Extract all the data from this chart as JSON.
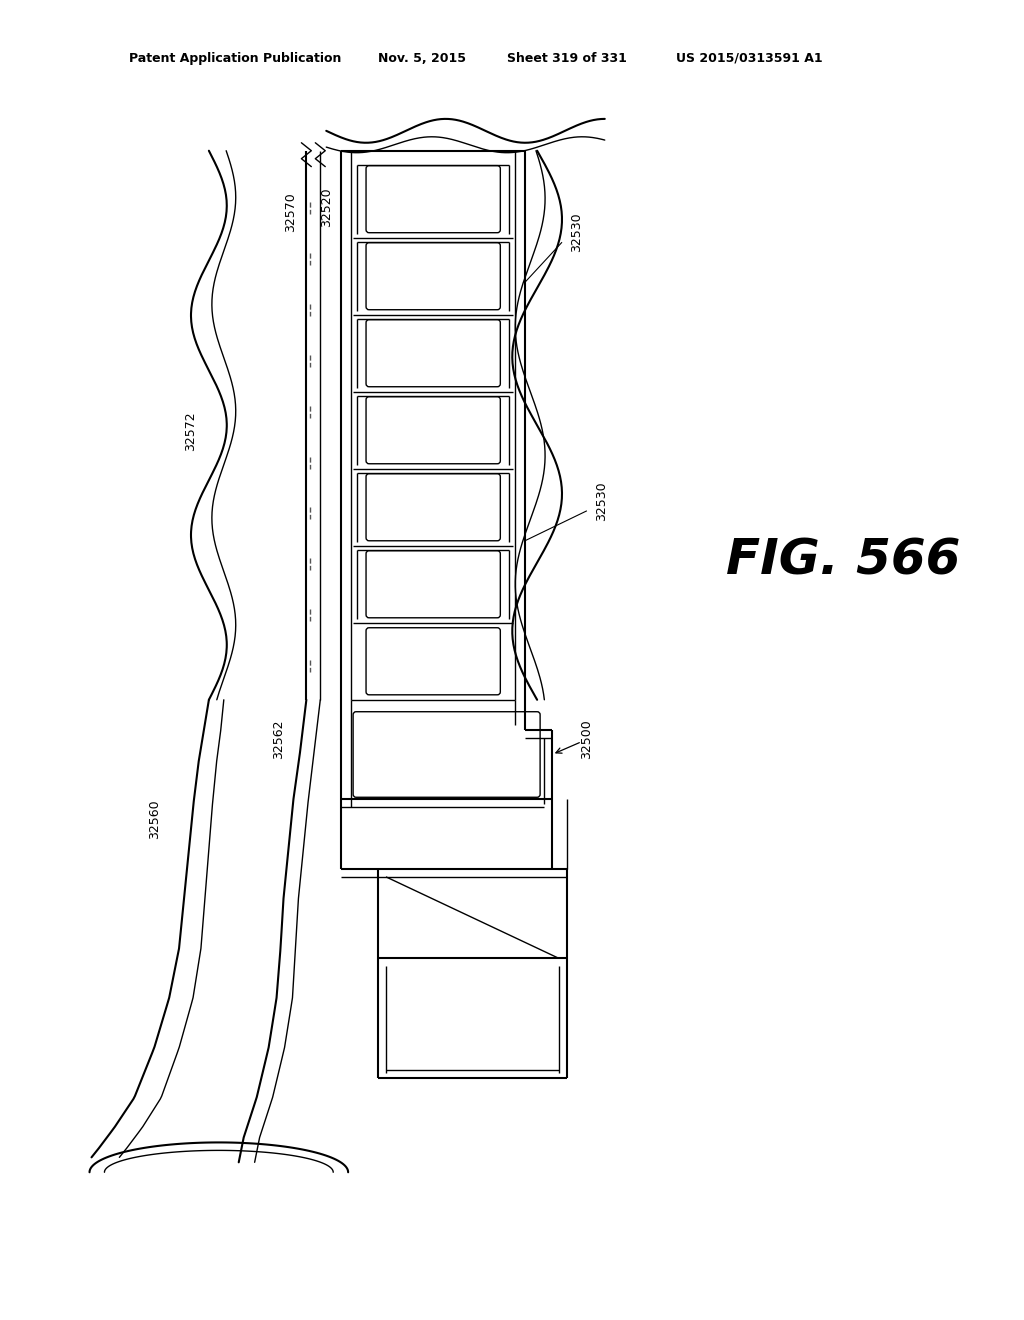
{
  "title_line1": "Patent Application Publication",
  "title_line2": "Nov. 5, 2015",
  "title_line3": "Sheet 319 of 331",
  "title_line4": "US 2015/0313591 A1",
  "fig_label": "FIG. 566",
  "background_color": "#ffffff",
  "line_color": "#000000"
}
